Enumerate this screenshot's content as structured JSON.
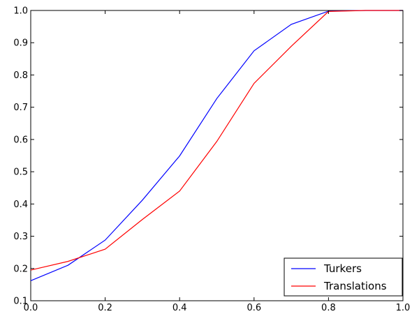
{
  "chart_data": {
    "type": "line",
    "title": "",
    "xlabel": "",
    "ylabel": "",
    "xlim": [
      0.0,
      1.0
    ],
    "ylim": [
      0.1,
      1.0
    ],
    "xticks": [
      "0.0",
      "0.2",
      "0.4",
      "0.6",
      "0.8",
      "1.0"
    ],
    "yticks": [
      "0.1",
      "0.2",
      "0.3",
      "0.4",
      "0.5",
      "0.6",
      "0.7",
      "0.8",
      "0.9",
      "1.0"
    ],
    "grid": false,
    "legend_position": "bottom-right",
    "x": [
      0.0,
      0.1,
      0.2,
      0.3,
      0.4,
      0.5,
      0.6,
      0.7,
      0.8,
      0.9,
      1.0
    ],
    "series": [
      {
        "name": "Turkers",
        "color": "#0000ff",
        "values": [
          0.162,
          0.21,
          0.288,
          0.412,
          0.549,
          0.727,
          0.875,
          0.957,
          0.998,
          1.0,
          1.0
        ]
      },
      {
        "name": "Translations",
        "color": "#ff0000",
        "values": [
          0.195,
          0.222,
          0.26,
          0.352,
          0.44,
          0.594,
          0.774,
          0.889,
          0.997,
          1.0,
          1.0
        ]
      }
    ]
  }
}
